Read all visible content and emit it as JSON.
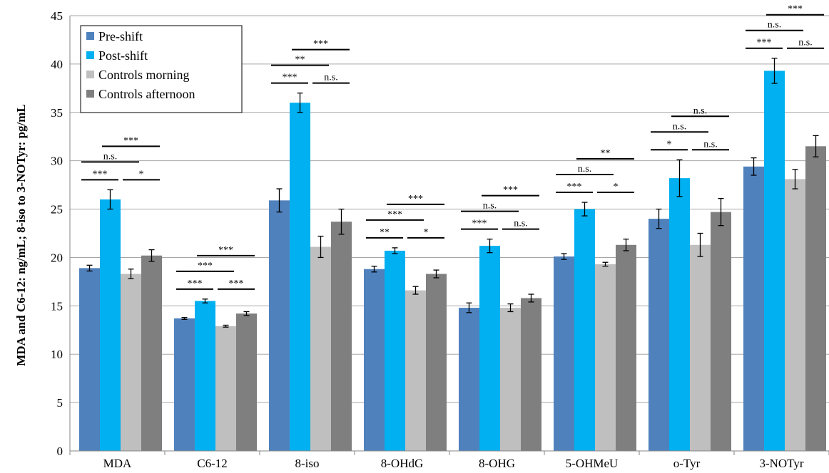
{
  "chart_data": {
    "type": "bar",
    "title": "",
    "xlabel": "",
    "ylabel": "MDA and C6-12: ng/mL; 8-iso to 3-NOTyr: pg/mL",
    "ylim": [
      0,
      45
    ],
    "yticks": [
      0,
      5,
      10,
      15,
      20,
      25,
      30,
      35,
      40,
      45
    ],
    "grid": true,
    "legend_position": "top-left",
    "categories": [
      "MDA",
      "C6-12",
      "8-iso",
      "8-OHdG",
      "8-OHG",
      "5-OHMeU",
      "o-Tyr",
      "3-NOTyr"
    ],
    "series": [
      {
        "name": "Pre-shift",
        "color": "#4f81bd",
        "values": [
          18.9,
          13.7,
          25.9,
          18.8,
          14.8,
          20.1,
          24.0,
          29.4
        ],
        "errors": [
          0.3,
          0.1,
          1.2,
          0.3,
          0.5,
          0.3,
          1.0,
          0.9
        ]
      },
      {
        "name": "Post-shift",
        "color": "#00b0f0",
        "values": [
          26.0,
          15.5,
          36.0,
          20.7,
          21.2,
          25.0,
          28.2,
          39.3
        ],
        "errors": [
          1.0,
          0.2,
          1.0,
          0.3,
          0.7,
          0.7,
          1.9,
          1.3
        ]
      },
      {
        "name": "Controls morning",
        "color": "#bfbfbf",
        "values": [
          18.3,
          12.9,
          21.1,
          16.6,
          14.8,
          19.3,
          21.3,
          28.1
        ],
        "errors": [
          0.5,
          0.1,
          1.1,
          0.4,
          0.4,
          0.2,
          1.2,
          1.0
        ]
      },
      {
        "name": "Controls afternoon",
        "color": "#7f7f7f",
        "values": [
          20.2,
          14.2,
          23.7,
          18.3,
          15.8,
          21.3,
          24.7,
          31.5
        ],
        "errors": [
          0.6,
          0.2,
          1.3,
          0.4,
          0.4,
          0.6,
          1.4,
          1.1
        ]
      }
    ],
    "significance": [
      [
        {
          "label": "***",
          "from": 0,
          "to": 1
        },
        {
          "label": "n.s.",
          "from": 0,
          "to": 2
        },
        {
          "label": "***",
          "from": 1,
          "to": 3
        },
        {
          "label": "*",
          "from": 2,
          "to": 3
        }
      ],
      [
        {
          "label": "***",
          "from": 0,
          "to": 1
        },
        {
          "label": "***",
          "from": 0,
          "to": 2
        },
        {
          "label": "***",
          "from": 1,
          "to": 3
        },
        {
          "label": "***",
          "from": 2,
          "to": 3
        }
      ],
      [
        {
          "label": "***",
          "from": 0,
          "to": 1
        },
        {
          "label": "**",
          "from": 0,
          "to": 2
        },
        {
          "label": "***",
          "from": 1,
          "to": 3
        },
        {
          "label": "n.s.",
          "from": 2,
          "to": 3
        }
      ],
      [
        {
          "label": "**",
          "from": 0,
          "to": 1
        },
        {
          "label": "***",
          "from": 0,
          "to": 2
        },
        {
          "label": "***",
          "from": 1,
          "to": 3
        },
        {
          "label": "*",
          "from": 2,
          "to": 3
        }
      ],
      [
        {
          "label": "***",
          "from": 0,
          "to": 1
        },
        {
          "label": "n.s.",
          "from": 0,
          "to": 2
        },
        {
          "label": "***",
          "from": 1,
          "to": 3
        },
        {
          "label": "n.s.",
          "from": 2,
          "to": 3
        }
      ],
      [
        {
          "label": "***",
          "from": 0,
          "to": 1
        },
        {
          "label": "n.s.",
          "from": 0,
          "to": 2
        },
        {
          "label": "**",
          "from": 1,
          "to": 3
        },
        {
          "label": "*",
          "from": 2,
          "to": 3
        }
      ],
      [
        {
          "label": "*",
          "from": 0,
          "to": 1
        },
        {
          "label": "n.s.",
          "from": 0,
          "to": 2
        },
        {
          "label": "n.s.",
          "from": 1,
          "to": 3
        },
        {
          "label": "n.s.",
          "from": 2,
          "to": 3
        }
      ],
      [
        {
          "label": "***",
          "from": 0,
          "to": 1
        },
        {
          "label": "n.s.",
          "from": 0,
          "to": 2
        },
        {
          "label": "***",
          "from": 1,
          "to": 3
        },
        {
          "label": "n.s.",
          "from": 2,
          "to": 3
        }
      ]
    ]
  }
}
